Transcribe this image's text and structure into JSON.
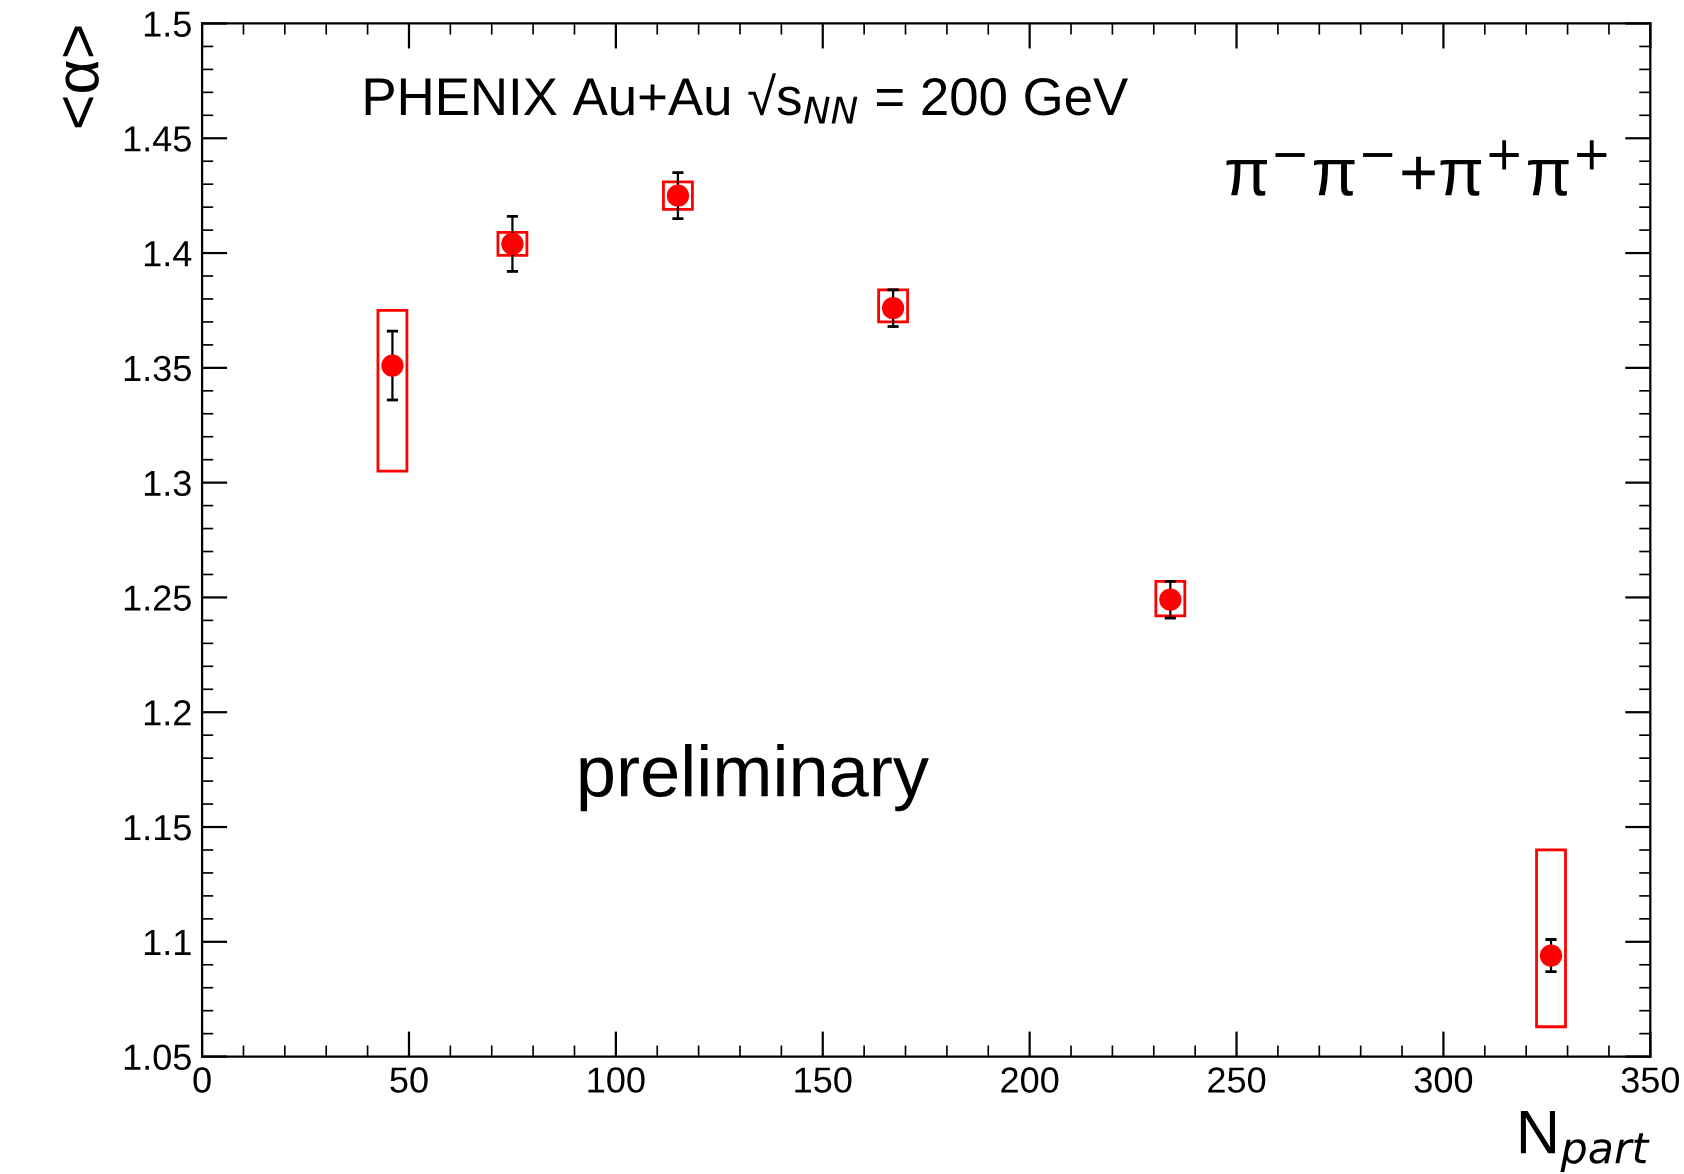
{
  "chart_data": {
    "type": "scatter",
    "title": "PHENIX Au+Au √s$_{NN}$ = 200 GeV",
    "xlabel": "N$_{part}$",
    "ylabel": "<α>",
    "annotations": [
      "π$^{−}$π$^{−}$+π$^{+}$π$^{+}$",
      "preliminary"
    ],
    "xlim": [
      0,
      350
    ],
    "xticks": [
      0,
      50,
      100,
      150,
      200,
      250,
      300,
      350
    ],
    "ylim": [
      1.05,
      1.5
    ],
    "yticks": [
      1.05,
      1.1,
      1.15,
      1.2,
      1.25,
      1.3,
      1.35,
      1.4,
      1.45,
      1.5
    ],
    "grid": false,
    "legend": false,
    "marker": "circle",
    "series": [
      {
        "type": "bar",
        "color": "#ff0000",
        "x": [
          46,
          75,
          115,
          167,
          234,
          326
        ],
        "base": [
          1.305,
          1.399,
          1.419,
          1.37,
          1.242,
          1.063
        ],
        "values": [
          0.07,
          0.01,
          0.012,
          0.014,
          0.015,
          0.077
        ]
      },
      {
        "color": "#ff0000",
        "x": [
          46,
          75,
          115,
          167,
          234,
          326
        ],
        "values": [
          1.351,
          1.404,
          1.425,
          1.376,
          1.249,
          1.094
        ],
        "errors": [
          0.015,
          0.012,
          0.01,
          0.008,
          0.008,
          0.007
        ]
      }
    ]
  }
}
